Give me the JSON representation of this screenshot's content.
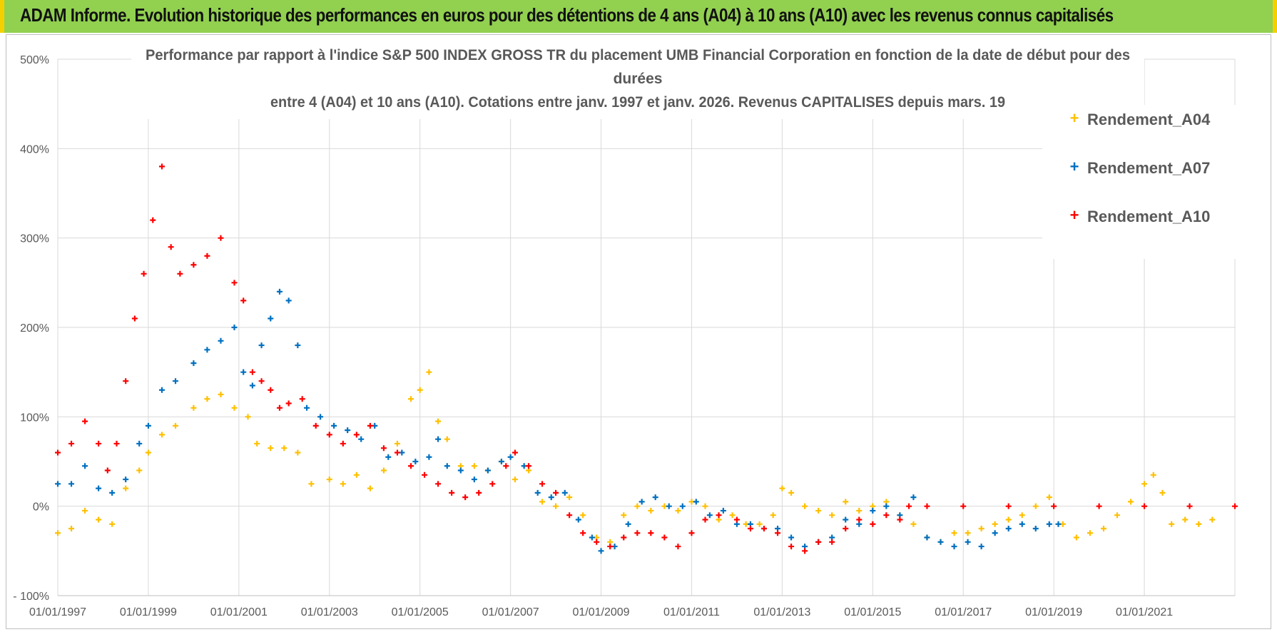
{
  "header": {
    "title": "ADAM Informe. Evolution historique des performances en euros pour des détentions de 4 ans (A04) à 10 ans (A10) avec les revenus connus capitalisés"
  },
  "colors": {
    "banner_bg": "#92d050",
    "banner_border": "#f5d000",
    "a04": "#ffc000",
    "a07": "#0070c0",
    "a10": "#ff0000",
    "grid": "#d9d9d9"
  },
  "chart_data": {
    "type": "scatter",
    "title_lines": [
      "Performance par rapport à l'indice S&P 500 INDEX GROSS TR  du placement UMB Financial Corporation en fonction de la date de début pour des",
      "durées",
      "entre 4 (A04) et 10 ans (A10). Cotations entre janv. 1997 et janv. 2026. Revenus CAPITALISES depuis mars. 19"
    ],
    "xlabel": "",
    "ylabel": "",
    "x_range": [
      1997.0,
      2023.0
    ],
    "ylim": [
      -100,
      500
    ],
    "y_ticks": [
      -100,
      0,
      100,
      200,
      300,
      400,
      500
    ],
    "y_tick_labels": [
      "- 100%",
      "0%",
      "100%",
      "200%",
      "300%",
      "400%",
      "500%"
    ],
    "x_ticks": [
      1997,
      1999,
      2001,
      2003,
      2005,
      2007,
      2009,
      2011,
      2013,
      2015,
      2017,
      2019,
      2021
    ],
    "x_tick_labels": [
      "01/01/1997",
      "01/01/1999",
      "01/01/2001",
      "01/01/2003",
      "01/01/2005",
      "01/01/2007",
      "01/01/2009",
      "01/01/2011",
      "01/01/2013",
      "01/01/2015",
      "01/01/2017",
      "01/01/2019",
      "01/01/2021"
    ],
    "grid": true,
    "legend_position": "top-right",
    "series": [
      {
        "name": "Rendement_A04",
        "marker": "+",
        "points": [
          [
            1997.0,
            -30
          ],
          [
            1997.3,
            -25
          ],
          [
            1997.6,
            -5
          ],
          [
            1997.9,
            -15
          ],
          [
            1998.2,
            -20
          ],
          [
            1998.5,
            20
          ],
          [
            1998.8,
            40
          ],
          [
            1999.0,
            60
          ],
          [
            1999.3,
            80
          ],
          [
            1999.6,
            90
          ],
          [
            2000.0,
            110
          ],
          [
            2000.3,
            120
          ],
          [
            2000.6,
            125
          ],
          [
            2000.9,
            110
          ],
          [
            2001.2,
            100
          ],
          [
            2001.4,
            70
          ],
          [
            2001.7,
            65
          ],
          [
            2002.0,
            65
          ],
          [
            2002.3,
            60
          ],
          [
            2002.6,
            25
          ],
          [
            2003.0,
            30
          ],
          [
            2003.3,
            25
          ],
          [
            2003.6,
            35
          ],
          [
            2003.9,
            20
          ],
          [
            2004.2,
            40
          ],
          [
            2004.5,
            70
          ],
          [
            2004.8,
            120
          ],
          [
            2005.0,
            130
          ],
          [
            2005.2,
            150
          ],
          [
            2005.4,
            95
          ],
          [
            2005.6,
            75
          ],
          [
            2005.9,
            45
          ],
          [
            2006.2,
            45
          ],
          [
            2006.5,
            40
          ],
          [
            2006.8,
            50
          ],
          [
            2007.1,
            30
          ],
          [
            2007.4,
            40
          ],
          [
            2007.7,
            5
          ],
          [
            2008.0,
            0
          ],
          [
            2008.3,
            10
          ],
          [
            2008.6,
            -10
          ],
          [
            2008.9,
            -35
          ],
          [
            2009.2,
            -40
          ],
          [
            2009.5,
            -10
          ],
          [
            2009.8,
            0
          ],
          [
            2010.1,
            -5
          ],
          [
            2010.4,
            0
          ],
          [
            2010.7,
            -5
          ],
          [
            2011.0,
            5
          ],
          [
            2011.3,
            0
          ],
          [
            2011.6,
            -15
          ],
          [
            2011.9,
            -10
          ],
          [
            2012.2,
            -20
          ],
          [
            2012.5,
            -20
          ],
          [
            2012.8,
            -10
          ],
          [
            2013.0,
            20
          ],
          [
            2013.2,
            15
          ],
          [
            2013.5,
            0
          ],
          [
            2013.8,
            -5
          ],
          [
            2014.1,
            -10
          ],
          [
            2014.4,
            5
          ],
          [
            2014.7,
            -5
          ],
          [
            2015.0,
            0
          ],
          [
            2015.3,
            5
          ],
          [
            2015.6,
            -10
          ],
          [
            2015.9,
            -20
          ],
          [
            2016.2,
            -35
          ],
          [
            2016.5,
            -40
          ],
          [
            2016.8,
            -30
          ],
          [
            2017.1,
            -30
          ],
          [
            2017.4,
            -25
          ],
          [
            2017.7,
            -20
          ],
          [
            2018.0,
            -15
          ],
          [
            2018.3,
            -10
          ],
          [
            2018.6,
            0
          ],
          [
            2018.9,
            10
          ],
          [
            2019.2,
            -20
          ],
          [
            2019.5,
            -35
          ],
          [
            2019.8,
            -30
          ],
          [
            2020.1,
            -25
          ],
          [
            2020.4,
            -10
          ],
          [
            2020.7,
            5
          ],
          [
            2021.0,
            25
          ],
          [
            2021.2,
            35
          ],
          [
            2021.4,
            15
          ],
          [
            2021.6,
            -20
          ],
          [
            2021.9,
            -15
          ],
          [
            2022.2,
            -20
          ],
          [
            2022.5,
            -15
          ]
        ]
      },
      {
        "name": "Rendement_A07",
        "marker": "+",
        "points": [
          [
            1997.0,
            25
          ],
          [
            1997.3,
            25
          ],
          [
            1997.6,
            45
          ],
          [
            1997.9,
            20
          ],
          [
            1998.2,
            15
          ],
          [
            1998.5,
            30
          ],
          [
            1998.8,
            70
          ],
          [
            1999.0,
            90
          ],
          [
            1999.3,
            130
          ],
          [
            1999.6,
            140
          ],
          [
            2000.0,
            160
          ],
          [
            2000.3,
            175
          ],
          [
            2000.6,
            185
          ],
          [
            2000.9,
            200
          ],
          [
            2001.1,
            150
          ],
          [
            2001.3,
            135
          ],
          [
            2001.5,
            180
          ],
          [
            2001.7,
            210
          ],
          [
            2001.9,
            240
          ],
          [
            2002.1,
            230
          ],
          [
            2002.3,
            180
          ],
          [
            2002.5,
            110
          ],
          [
            2002.8,
            100
          ],
          [
            2003.1,
            90
          ],
          [
            2003.4,
            85
          ],
          [
            2003.7,
            75
          ],
          [
            2004.0,
            90
          ],
          [
            2004.3,
            55
          ],
          [
            2004.6,
            60
          ],
          [
            2004.9,
            50
          ],
          [
            2005.2,
            55
          ],
          [
            2005.4,
            75
          ],
          [
            2005.6,
            45
          ],
          [
            2005.9,
            40
          ],
          [
            2006.2,
            30
          ],
          [
            2006.5,
            40
          ],
          [
            2006.8,
            50
          ],
          [
            2007.0,
            55
          ],
          [
            2007.3,
            45
          ],
          [
            2007.6,
            15
          ],
          [
            2007.9,
            10
          ],
          [
            2008.2,
            15
          ],
          [
            2008.5,
            -15
          ],
          [
            2008.8,
            -35
          ],
          [
            2009.0,
            -50
          ],
          [
            2009.3,
            -45
          ],
          [
            2009.6,
            -20
          ],
          [
            2009.9,
            5
          ],
          [
            2010.2,
            10
          ],
          [
            2010.5,
            0
          ],
          [
            2010.8,
            0
          ],
          [
            2011.1,
            5
          ],
          [
            2011.4,
            -10
          ],
          [
            2011.7,
            -5
          ],
          [
            2012.0,
            -20
          ],
          [
            2012.3,
            -20
          ],
          [
            2012.6,
            -25
          ],
          [
            2012.9,
            -25
          ],
          [
            2013.2,
            -35
          ],
          [
            2013.5,
            -45
          ],
          [
            2013.8,
            -40
          ],
          [
            2014.1,
            -35
          ],
          [
            2014.4,
            -15
          ],
          [
            2014.7,
            -20
          ],
          [
            2015.0,
            -5
          ],
          [
            2015.3,
            0
          ],
          [
            2015.6,
            -10
          ],
          [
            2015.9,
            10
          ],
          [
            2016.2,
            -35
          ],
          [
            2016.5,
            -40
          ],
          [
            2016.8,
            -45
          ],
          [
            2017.1,
            -40
          ],
          [
            2017.4,
            -45
          ],
          [
            2017.7,
            -30
          ],
          [
            2018.0,
            -25
          ],
          [
            2018.3,
            -20
          ],
          [
            2018.6,
            -25
          ],
          [
            2018.9,
            -20
          ],
          [
            2019.1,
            -20
          ]
        ]
      },
      {
        "name": "Rendement_A10",
        "marker": "+",
        "points": [
          [
            1997.0,
            60
          ],
          [
            1997.3,
            70
          ],
          [
            1997.6,
            95
          ],
          [
            1997.9,
            70
          ],
          [
            1998.1,
            40
          ],
          [
            1998.3,
            70
          ],
          [
            1998.5,
            140
          ],
          [
            1998.7,
            210
          ],
          [
            1998.9,
            260
          ],
          [
            1999.1,
            320
          ],
          [
            1999.3,
            380
          ],
          [
            1999.5,
            290
          ],
          [
            1999.7,
            260
          ],
          [
            2000.0,
            270
          ],
          [
            2000.3,
            280
          ],
          [
            2000.6,
            300
          ],
          [
            2000.9,
            250
          ],
          [
            2001.1,
            230
          ],
          [
            2001.3,
            150
          ],
          [
            2001.5,
            140
          ],
          [
            2001.7,
            130
          ],
          [
            2001.9,
            110
          ],
          [
            2002.1,
            115
          ],
          [
            2002.4,
            120
          ],
          [
            2002.7,
            90
          ],
          [
            2003.0,
            80
          ],
          [
            2003.3,
            70
          ],
          [
            2003.6,
            80
          ],
          [
            2003.9,
            90
          ],
          [
            2004.2,
            65
          ],
          [
            2004.5,
            60
          ],
          [
            2004.8,
            45
          ],
          [
            2005.1,
            35
          ],
          [
            2005.4,
            25
          ],
          [
            2005.7,
            15
          ],
          [
            2006.0,
            10
          ],
          [
            2006.3,
            15
          ],
          [
            2006.6,
            25
          ],
          [
            2006.9,
            45
          ],
          [
            2007.1,
            60
          ],
          [
            2007.4,
            45
          ],
          [
            2007.7,
            25
          ],
          [
            2008.0,
            15
          ],
          [
            2008.3,
            -10
          ],
          [
            2008.6,
            -30
          ],
          [
            2008.9,
            -40
          ],
          [
            2009.2,
            -45
          ],
          [
            2009.5,
            -35
          ],
          [
            2009.8,
            -30
          ],
          [
            2010.1,
            -30
          ],
          [
            2010.4,
            -35
          ],
          [
            2010.7,
            -45
          ],
          [
            2011.0,
            -30
          ],
          [
            2011.3,
            -15
          ],
          [
            2011.6,
            -10
          ],
          [
            2012.0,
            -15
          ],
          [
            2012.3,
            -25
          ],
          [
            2012.6,
            -25
          ],
          [
            2012.9,
            -30
          ],
          [
            2013.2,
            -45
          ],
          [
            2013.5,
            -50
          ],
          [
            2013.8,
            -40
          ],
          [
            2014.1,
            -40
          ],
          [
            2014.4,
            -25
          ],
          [
            2014.7,
            -15
          ],
          [
            2015.0,
            -20
          ],
          [
            2015.3,
            -10
          ],
          [
            2015.6,
            -15
          ],
          [
            2015.8,
            0
          ],
          [
            2016.2,
            0
          ],
          [
            2017.0,
            0
          ],
          [
            2018.0,
            0
          ],
          [
            2019.0,
            0
          ],
          [
            2020.0,
            0
          ],
          [
            2021.0,
            0
          ],
          [
            2022.0,
            0
          ],
          [
            2023.0,
            0
          ]
        ]
      }
    ]
  }
}
